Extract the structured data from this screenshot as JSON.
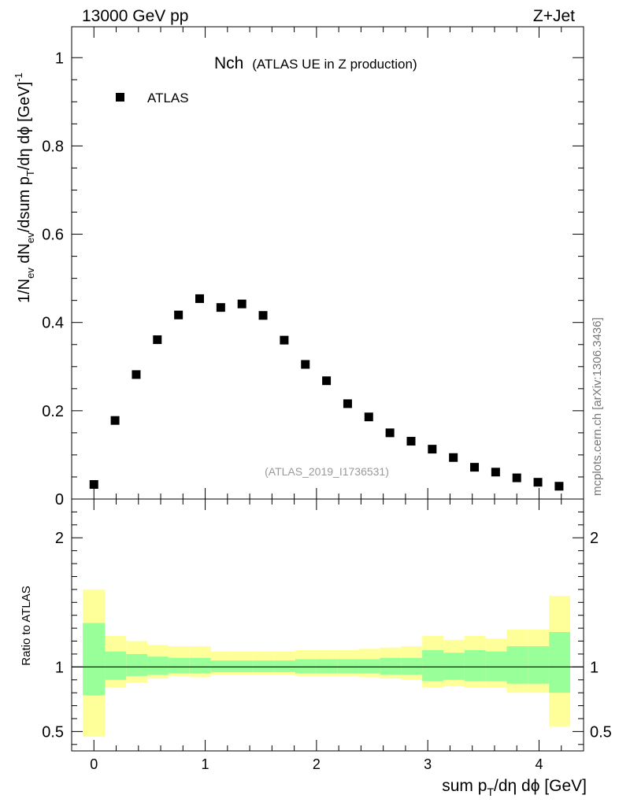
{
  "header": {
    "left": "13000 GeV pp",
    "right": "Z+Jet"
  },
  "title": {
    "main": "Nch",
    "sub": "(ATLAS UE in Z production)"
  },
  "legend": {
    "label": "ATLAS",
    "placement": "top-left"
  },
  "watermark": "(ATLAS_2019_I1736531)",
  "side_text": "mcplots.cern.ch [arXiv:1306.3436]",
  "chart_data": [
    {
      "type": "scatter",
      "panel": "main",
      "ylabel": {
        "prefix": "1/N",
        "sub1": "ev",
        "mid": " dN",
        "sub2": "ev",
        "rest": "/dsum p",
        "sub3": "T",
        "tail": "/dη dϕ  [GeV]",
        "sup": "-1"
      },
      "xlim": [
        -0.2,
        4.4
      ],
      "ylim": [
        0,
        1.07
      ],
      "ytick_labels": [
        "0",
        "0.2",
        "0.4",
        "0.6",
        "0.8",
        "1"
      ],
      "series": [
        {
          "name": "ATLAS",
          "x": [
            0.0,
            0.19,
            0.38,
            0.57,
            0.76,
            0.95,
            1.14,
            1.33,
            1.52,
            1.71,
            1.9,
            2.09,
            2.28,
            2.47,
            2.66,
            2.85,
            3.04,
            3.23,
            3.42,
            3.61,
            3.8,
            3.99,
            4.18
          ],
          "y": [
            0.033,
            0.178,
            0.282,
            0.361,
            0.417,
            0.454,
            0.434,
            0.442,
            0.416,
            0.36,
            0.305,
            0.268,
            0.216,
            0.186,
            0.15,
            0.131,
            0.113,
            0.094,
            0.072,
            0.061,
            0.048,
            0.038,
            0.029
          ]
        }
      ],
      "grid": false
    },
    {
      "type": "area",
      "panel": "ratio",
      "ylabel": "Ratio to ATLAS",
      "xlabel": {
        "prefix": "sum p",
        "sub": "T",
        "rest": "/dη dϕ [GeV]"
      },
      "xlim": [
        -0.2,
        4.4
      ],
      "ylim": [
        0.35,
        2.3
      ],
      "ytick_labels": [
        "0.5",
        "1",
        "2"
      ],
      "xtick_labels": [
        "0",
        "1",
        "2",
        "3",
        "4"
      ],
      "bin_edges": [
        -0.1,
        0.1,
        0.29,
        0.48,
        0.67,
        0.86,
        1.05,
        1.24,
        1.43,
        1.62,
        1.81,
        2.0,
        2.19,
        2.38,
        2.57,
        2.76,
        2.95,
        3.14,
        3.33,
        3.52,
        3.71,
        3.9,
        4.09,
        4.28
      ],
      "band_outer_lo": [
        0.46,
        0.84,
        0.88,
        0.91,
        0.93,
        0.92,
        0.94,
        0.94,
        0.94,
        0.94,
        0.93,
        0.93,
        0.93,
        0.92,
        0.91,
        0.9,
        0.84,
        0.85,
        0.84,
        0.84,
        0.8,
        0.8,
        0.54
      ],
      "band_outer_hi": [
        1.6,
        1.24,
        1.2,
        1.17,
        1.16,
        1.16,
        1.12,
        1.12,
        1.12,
        1.12,
        1.13,
        1.13,
        1.13,
        1.14,
        1.15,
        1.16,
        1.24,
        1.21,
        1.24,
        1.22,
        1.29,
        1.29,
        1.55
      ],
      "band_inner_lo": [
        0.78,
        0.9,
        0.93,
        0.94,
        0.95,
        0.95,
        0.96,
        0.96,
        0.96,
        0.96,
        0.95,
        0.95,
        0.95,
        0.95,
        0.94,
        0.94,
        0.89,
        0.9,
        0.89,
        0.89,
        0.87,
        0.87,
        0.8
      ],
      "band_inner_hi": [
        1.34,
        1.12,
        1.1,
        1.08,
        1.07,
        1.07,
        1.05,
        1.05,
        1.05,
        1.05,
        1.06,
        1.06,
        1.06,
        1.06,
        1.07,
        1.07,
        1.13,
        1.11,
        1.13,
        1.12,
        1.16,
        1.16,
        1.27
      ],
      "reference": 1,
      "colors": {
        "outer": "#ffff99",
        "inner": "#99ff99",
        "reference": "#000000"
      }
    }
  ]
}
